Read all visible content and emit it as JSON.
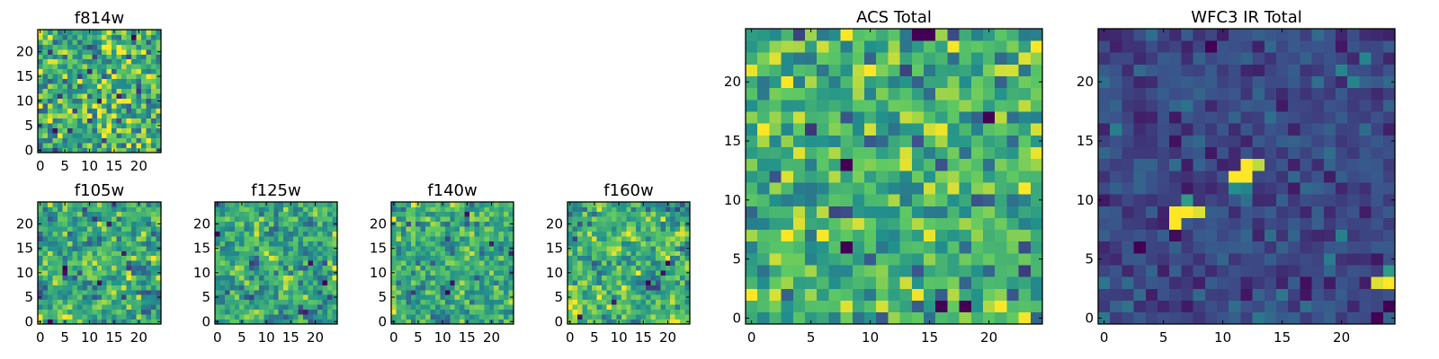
{
  "figure": {
    "colormap": "viridis",
    "colors": [
      "#440154",
      "#3b528b",
      "#21908d",
      "#5dc863",
      "#fde725"
    ],
    "frame_color": "#000000"
  },
  "chart_data": [
    {
      "id": "f814w",
      "type": "heatmap",
      "title": "f814w",
      "grid_size": [
        25,
        25
      ],
      "x_ticks": [
        0,
        5,
        10,
        15,
        20
      ],
      "y_ticks": [
        0,
        5,
        10,
        15,
        20
      ],
      "xlim": [
        -0.5,
        24.5
      ],
      "ylim": [
        -0.5,
        24.5
      ],
      "value_range": [
        0,
        1
      ],
      "mean_level": 0.62,
      "spread": 0.2,
      "seed": 11,
      "smooth": 0,
      "features": []
    },
    {
      "id": "f105w",
      "type": "heatmap",
      "title": "f105w",
      "grid_size": [
        25,
        25
      ],
      "x_ticks": [
        0,
        5,
        10,
        15,
        20
      ],
      "y_ticks": [
        0,
        5,
        10,
        15,
        20
      ],
      "xlim": [
        -0.5,
        24.5
      ],
      "ylim": [
        -0.5,
        24.5
      ],
      "value_range": [
        0,
        1
      ],
      "mean_level": 0.58,
      "spread": 0.22,
      "seed": 23,
      "smooth": 1,
      "features": [
        {
          "x": 5,
          "y": 11,
          "value": 0.0
        },
        {
          "x": 5,
          "y": 10,
          "value": 0.05
        },
        {
          "x": 12,
          "y": 8,
          "value": 0.05
        },
        {
          "x": 14,
          "y": 20,
          "value": 0.1
        },
        {
          "x": 2,
          "y": 0,
          "value": 0.0
        },
        {
          "x": 17,
          "y": 14,
          "value": 0.1
        }
      ]
    },
    {
      "id": "f125w",
      "type": "heatmap",
      "title": "f125w",
      "grid_size": [
        25,
        25
      ],
      "x_ticks": [
        0,
        5,
        10,
        15,
        20
      ],
      "y_ticks": [
        0,
        5,
        10,
        15,
        20
      ],
      "xlim": [
        -0.5,
        24.5
      ],
      "ylim": [
        -0.5,
        24.5
      ],
      "value_range": [
        0,
        1
      ],
      "mean_level": 0.6,
      "spread": 0.22,
      "seed": 37,
      "smooth": 1,
      "features": [
        {
          "x": 0,
          "y": 18,
          "value": 0.0
        },
        {
          "x": 19,
          "y": 12,
          "value": 0.05
        },
        {
          "x": 22,
          "y": 8,
          "value": 0.0
        },
        {
          "x": 18,
          "y": 2,
          "value": 0.1
        }
      ]
    },
    {
      "id": "f140w",
      "type": "heatmap",
      "title": "f140w",
      "grid_size": [
        25,
        25
      ],
      "x_ticks": [
        0,
        5,
        10,
        15,
        20
      ],
      "y_ticks": [
        0,
        5,
        10,
        15,
        20
      ],
      "xlim": [
        -0.5,
        24.5
      ],
      "ylim": [
        -0.5,
        24.5
      ],
      "value_range": [
        0,
        1
      ],
      "mean_level": 0.62,
      "spread": 0.22,
      "seed": 41,
      "smooth": 1,
      "features": [
        {
          "x": 11,
          "y": 6,
          "value": 0.0
        },
        {
          "x": 12,
          "y": 8,
          "value": 0.05
        },
        {
          "x": 15,
          "y": 22,
          "value": 0.05
        },
        {
          "x": 20,
          "y": 16,
          "value": 0.1
        }
      ]
    },
    {
      "id": "f160w",
      "type": "heatmap",
      "title": "f160w",
      "grid_size": [
        25,
        25
      ],
      "x_ticks": [
        0,
        5,
        10,
        15,
        20
      ],
      "y_ticks": [
        0,
        5,
        10,
        15,
        20
      ],
      "xlim": [
        -0.5,
        24.5
      ],
      "ylim": [
        -0.5,
        24.5
      ],
      "value_range": [
        0,
        1
      ],
      "mean_level": 0.64,
      "spread": 0.24,
      "seed": 53,
      "smooth": 1,
      "features": [
        {
          "x": 20,
          "y": 12,
          "value": 0.0
        },
        {
          "x": 19,
          "y": 10,
          "value": 0.05
        },
        {
          "x": 2,
          "y": 1,
          "value": 0.05
        },
        {
          "x": 9,
          "y": 4,
          "value": 0.1
        }
      ]
    },
    {
      "id": "acs-total",
      "type": "heatmap",
      "title": "ACS Total",
      "grid_size": [
        25,
        25
      ],
      "x_ticks": [
        0,
        5,
        10,
        15,
        20
      ],
      "y_ticks": [
        0,
        5,
        10,
        15,
        20
      ],
      "xlim": [
        -0.5,
        24.5
      ],
      "ylim": [
        -0.5,
        24.5
      ],
      "value_range": [
        0,
        1
      ],
      "mean_level": 0.64,
      "spread": 0.17,
      "seed": 67,
      "smooth": 0,
      "features": [
        {
          "x": 8,
          "y": 13,
          "value": 0.0
        },
        {
          "x": 8,
          "y": 6,
          "value": 0.0
        },
        {
          "x": 16,
          "y": 1,
          "value": 0.0
        },
        {
          "x": 18,
          "y": 1,
          "value": 0.0
        },
        {
          "x": 14,
          "y": 24,
          "value": 0.0
        },
        {
          "x": 15,
          "y": 24,
          "value": 0.0
        },
        {
          "x": 20,
          "y": 17,
          "value": 0.0
        },
        {
          "x": 14,
          "y": 15,
          "value": 0.25
        },
        {
          "x": 19,
          "y": 10,
          "value": 0.25
        },
        {
          "x": 16,
          "y": 2,
          "value": 0.3
        },
        {
          "x": 3,
          "y": 12,
          "value": 0.95
        },
        {
          "x": 23,
          "y": 22,
          "value": 0.95
        }
      ]
    },
    {
      "id": "wfc3-ir-total",
      "type": "heatmap",
      "title": "WFC3 IR Total",
      "grid_size": [
        25,
        25
      ],
      "x_ticks": [
        0,
        5,
        10,
        15,
        20
      ],
      "y_ticks": [
        0,
        5,
        10,
        15,
        20
      ],
      "xlim": [
        -0.5,
        24.5
      ],
      "ylim": [
        -0.5,
        24.5
      ],
      "value_range": [
        0,
        1
      ],
      "mean_level": 0.22,
      "spread": 0.07,
      "seed": 79,
      "smooth": 0,
      "features": [
        {
          "x": 6,
          "y": 8,
          "value": 1.0
        },
        {
          "x": 6,
          "y": 9,
          "value": 1.0
        },
        {
          "x": 7,
          "y": 9,
          "value": 1.0
        },
        {
          "x": 8,
          "y": 9,
          "value": 0.95
        },
        {
          "x": 7,
          "y": 10,
          "value": 0.55
        },
        {
          "x": 11,
          "y": 12,
          "value": 1.0
        },
        {
          "x": 12,
          "y": 12,
          "value": 1.0
        },
        {
          "x": 12,
          "y": 13,
          "value": 1.0
        },
        {
          "x": 11,
          "y": 11,
          "value": 0.5
        },
        {
          "x": 12,
          "y": 11,
          "value": 0.45
        },
        {
          "x": 13,
          "y": 13,
          "value": 0.9
        },
        {
          "x": 24,
          "y": 3,
          "value": 1.0
        },
        {
          "x": 23,
          "y": 3,
          "value": 0.95
        },
        {
          "x": 24,
          "y": 4,
          "value": 0.55
        },
        {
          "x": 21,
          "y": 20,
          "value": 0.45
        },
        {
          "x": 20,
          "y": 21,
          "value": 0.45
        },
        {
          "x": 22,
          "y": 22,
          "value": 0.45
        },
        {
          "x": 23,
          "y": 0,
          "value": 0.0
        },
        {
          "x": 24,
          "y": 1,
          "value": 0.0
        },
        {
          "x": 9,
          "y": 23,
          "value": 0.0
        },
        {
          "x": 3,
          "y": 6,
          "value": 0.0
        }
      ]
    }
  ]
}
